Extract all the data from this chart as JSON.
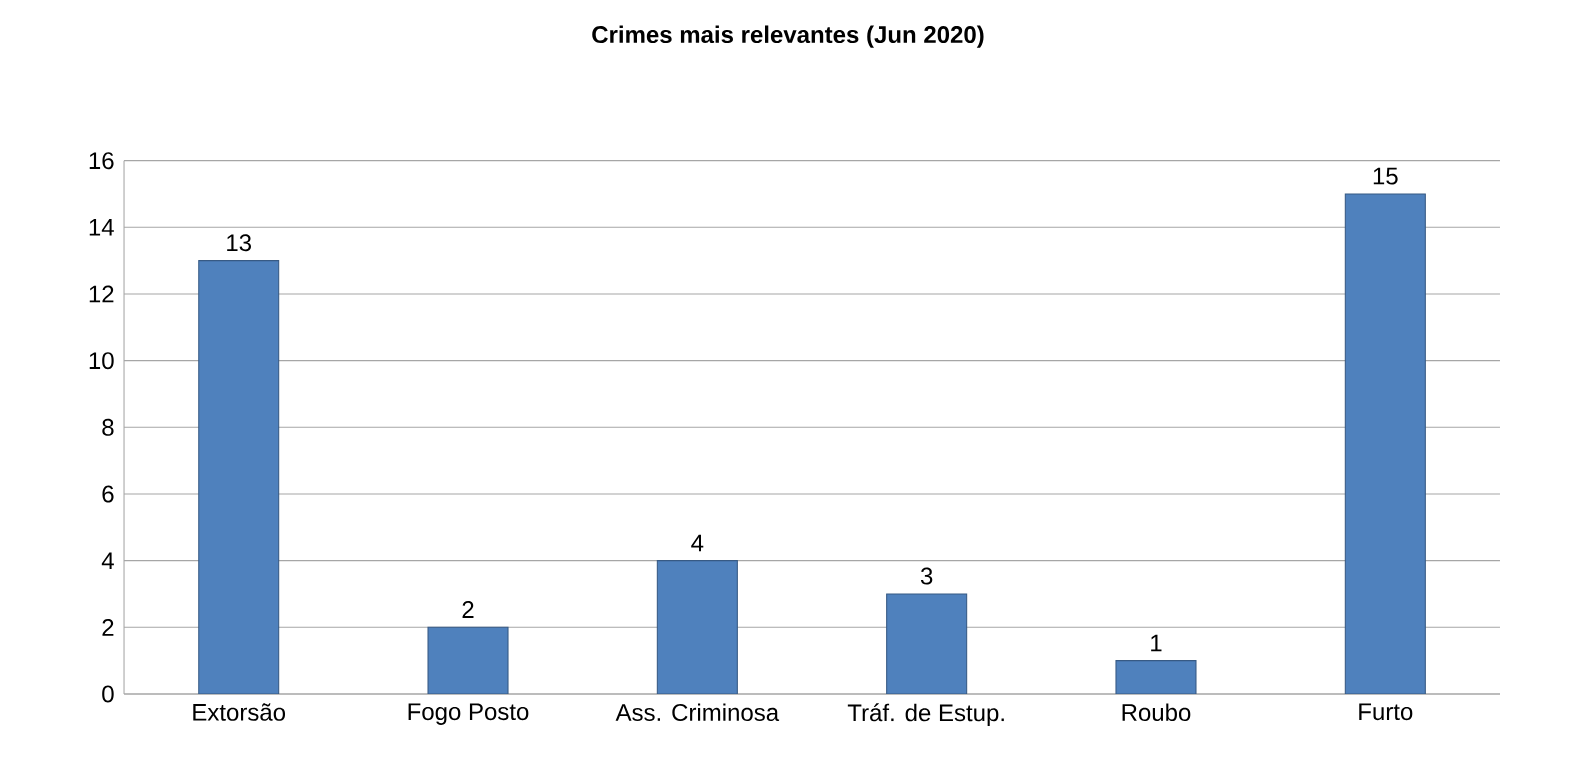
{
  "chart_data": {
    "type": "bar",
    "title": "Crimes mais relevantes (Jun 2020)",
    "categories": [
      "Extorsão",
      "Fogo Posto",
      "Ass. Criminosa",
      "Tráf. de Estup.",
      "Roubo",
      "Furto"
    ],
    "values": [
      13,
      2,
      4,
      3,
      1,
      15
    ],
    "color": "#4f81bd",
    "ylim": [
      0,
      16
    ],
    "yticks": [
      0,
      2,
      4,
      6,
      8,
      10,
      12,
      14,
      16
    ],
    "grid": "y",
    "data_labels": true
  }
}
